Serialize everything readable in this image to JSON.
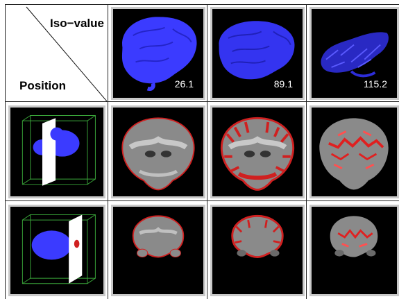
{
  "header": {
    "col_axis_label": "Iso−value",
    "row_axis_label": "Position"
  },
  "columns": [
    {
      "iso_value": "26.1"
    },
    {
      "iso_value": "89.1"
    },
    {
      "iso_value": "115.2"
    }
  ],
  "rows": [
    "plane-position-1",
    "plane-position-2"
  ],
  "colors": {
    "isosurface": "#3b3bff",
    "contour": "#e02020",
    "bounding_box": "#3aa63a",
    "slice_plane": "#ffffff",
    "tile_border": "#c9c9c9"
  }
}
